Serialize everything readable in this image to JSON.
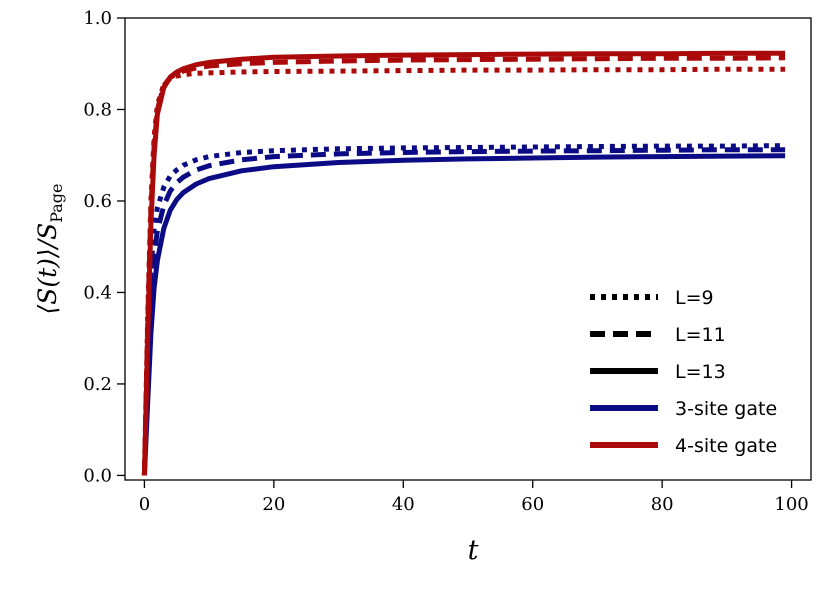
{
  "chart_data": {
    "type": "line",
    "title": "",
    "xlabel": "t",
    "ylabel_main": "⟨S(t)⟩/S",
    "ylabel_sub": "Page",
    "xlim": [
      -3,
      103
    ],
    "ylim": [
      -0.01,
      1.0
    ],
    "xticks": [
      0,
      20,
      40,
      60,
      80,
      100
    ],
    "yticks": [
      0.0,
      0.2,
      0.4,
      0.6,
      0.8,
      1.0
    ],
    "xtick_labels": [
      "0",
      "20",
      "40",
      "60",
      "80",
      "100"
    ],
    "ytick_labels": [
      "0.0",
      "0.2",
      "0.4",
      "0.6",
      "0.8",
      "1.0"
    ],
    "grid": false,
    "legend_position": "bottom-right",
    "legend": [
      {
        "label": "L=9",
        "style": "dotted",
        "color": "#000000"
      },
      {
        "label": "L=11",
        "style": "dashed",
        "color": "#000000"
      },
      {
        "label": "L=13",
        "style": "solid",
        "color": "#000000"
      },
      {
        "label": "3-site gate",
        "style": "solid",
        "color": "#0b0b85"
      },
      {
        "label": "4-site gate",
        "style": "solid",
        "color": "#aa0a0a"
      }
    ],
    "series": [
      {
        "gate": "3-site",
        "L": 9,
        "style": "dotted",
        "color": "#0b0b85",
        "x": [
          0,
          0.5,
          1,
          1.5,
          2,
          3,
          4,
          5,
          6,
          8,
          10,
          15,
          20,
          30,
          40,
          50,
          60,
          70,
          80,
          90,
          99
        ],
        "y": [
          0.0,
          0.28,
          0.45,
          0.54,
          0.585,
          0.63,
          0.655,
          0.668,
          0.678,
          0.69,
          0.697,
          0.706,
          0.71,
          0.714,
          0.716,
          0.717,
          0.718,
          0.719,
          0.72,
          0.72,
          0.721
        ]
      },
      {
        "gate": "3-site",
        "L": 11,
        "style": "dashed",
        "color": "#0b0b85",
        "x": [
          0,
          0.5,
          1,
          1.5,
          2,
          3,
          4,
          5,
          6,
          8,
          10,
          15,
          20,
          30,
          40,
          50,
          60,
          70,
          80,
          90,
          99
        ],
        "y": [
          0.0,
          0.22,
          0.38,
          0.48,
          0.535,
          0.59,
          0.622,
          0.64,
          0.652,
          0.668,
          0.677,
          0.69,
          0.697,
          0.703,
          0.706,
          0.708,
          0.709,
          0.71,
          0.711,
          0.712,
          0.712
        ]
      },
      {
        "gate": "3-site",
        "L": 13,
        "style": "solid",
        "color": "#0b0b85",
        "x": [
          0,
          0.5,
          1,
          1.5,
          2,
          3,
          4,
          5,
          6,
          8,
          10,
          15,
          20,
          30,
          40,
          50,
          60,
          70,
          80,
          90,
          99
        ],
        "y": [
          0.0,
          0.16,
          0.31,
          0.41,
          0.47,
          0.54,
          0.58,
          0.603,
          0.618,
          0.637,
          0.649,
          0.666,
          0.675,
          0.684,
          0.689,
          0.692,
          0.694,
          0.696,
          0.697,
          0.698,
          0.699
        ]
      },
      {
        "gate": "4-site",
        "L": 9,
        "style": "dotted",
        "color": "#aa0a0a",
        "x": [
          0,
          0.5,
          1,
          1.5,
          2,
          3,
          4,
          5,
          6,
          8,
          10,
          15,
          20,
          30,
          40,
          50,
          60,
          70,
          80,
          90,
          99
        ],
        "y": [
          0.0,
          0.35,
          0.6,
          0.74,
          0.81,
          0.855,
          0.868,
          0.873,
          0.876,
          0.879,
          0.88,
          0.882,
          0.883,
          0.884,
          0.885,
          0.886,
          0.886,
          0.887,
          0.887,
          0.888,
          0.888
        ]
      },
      {
        "gate": "4-site",
        "L": 11,
        "style": "dashed",
        "color": "#aa0a0a",
        "x": [
          0,
          0.5,
          1,
          1.5,
          2,
          3,
          4,
          5,
          6,
          8,
          10,
          15,
          20,
          30,
          40,
          50,
          60,
          70,
          80,
          90,
          99
        ],
        "y": [
          0.0,
          0.33,
          0.58,
          0.72,
          0.8,
          0.852,
          0.87,
          0.878,
          0.884,
          0.891,
          0.895,
          0.9,
          0.903,
          0.906,
          0.908,
          0.909,
          0.91,
          0.911,
          0.912,
          0.912,
          0.913
        ]
      },
      {
        "gate": "4-site",
        "L": 13,
        "style": "solid",
        "color": "#aa0a0a",
        "x": [
          0,
          0.5,
          1,
          1.5,
          2,
          3,
          4,
          5,
          6,
          8,
          10,
          15,
          20,
          30,
          40,
          50,
          60,
          70,
          80,
          90,
          99
        ],
        "y": [
          0.0,
          0.3,
          0.55,
          0.7,
          0.79,
          0.848,
          0.871,
          0.882,
          0.889,
          0.898,
          0.903,
          0.91,
          0.914,
          0.917,
          0.919,
          0.92,
          0.921,
          0.922,
          0.922,
          0.923,
          0.923
        ]
      }
    ]
  }
}
